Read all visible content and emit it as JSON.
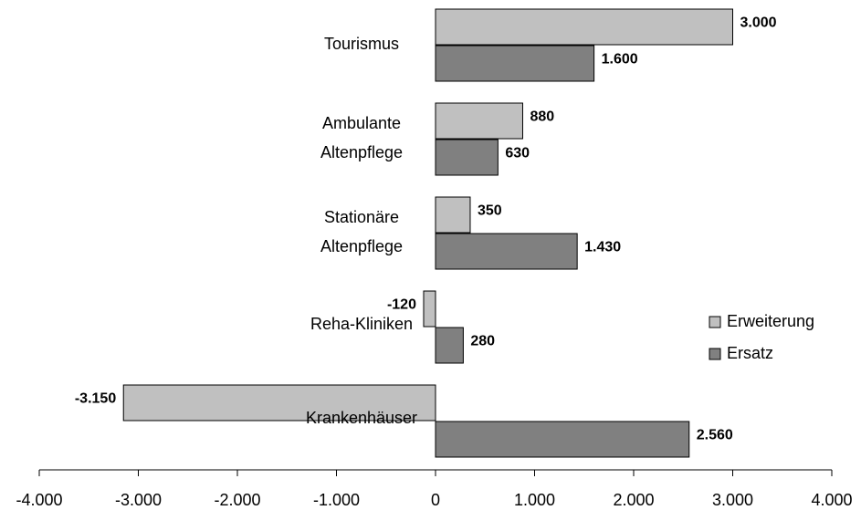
{
  "chart_data": {
    "type": "bar",
    "orientation": "horizontal",
    "categories": [
      [
        "Tourismus"
      ],
      [
        "Ambulante",
        "Altenpflege"
      ],
      [
        "Stationäre",
        "Altenpflege"
      ],
      [
        "Reha-Kliniken"
      ],
      [
        "Krankenhäuser"
      ]
    ],
    "series": [
      {
        "name": "Erweiterung",
        "color": "#c0c0c0",
        "values": [
          3000,
          880,
          350,
          -120,
          -3150
        ],
        "value_labels": [
          "3.000",
          "880",
          "350",
          "-120",
          "-3.150"
        ]
      },
      {
        "name": "Ersatz",
        "color": "#808080",
        "values": [
          1600,
          630,
          1430,
          280,
          2560
        ],
        "value_labels": [
          "1.600",
          "630",
          "1.430",
          "280",
          "2.560"
        ]
      }
    ],
    "xlim": [
      -4000,
      4000
    ],
    "xticks": [
      {
        "value": -4000,
        "label": "-4.000"
      },
      {
        "value": -3000,
        "label": "-3.000"
      },
      {
        "value": -2000,
        "label": "-2.000"
      },
      {
        "value": -1000,
        "label": "-1.000"
      },
      0,
      {
        "value": 1000,
        "label": "1.000"
      },
      {
        "value": 2000,
        "label": "2.000"
      },
      {
        "value": 3000,
        "label": "3.000"
      },
      {
        "value": 4000,
        "label": "4.000"
      }
    ],
    "legend": "right"
  }
}
